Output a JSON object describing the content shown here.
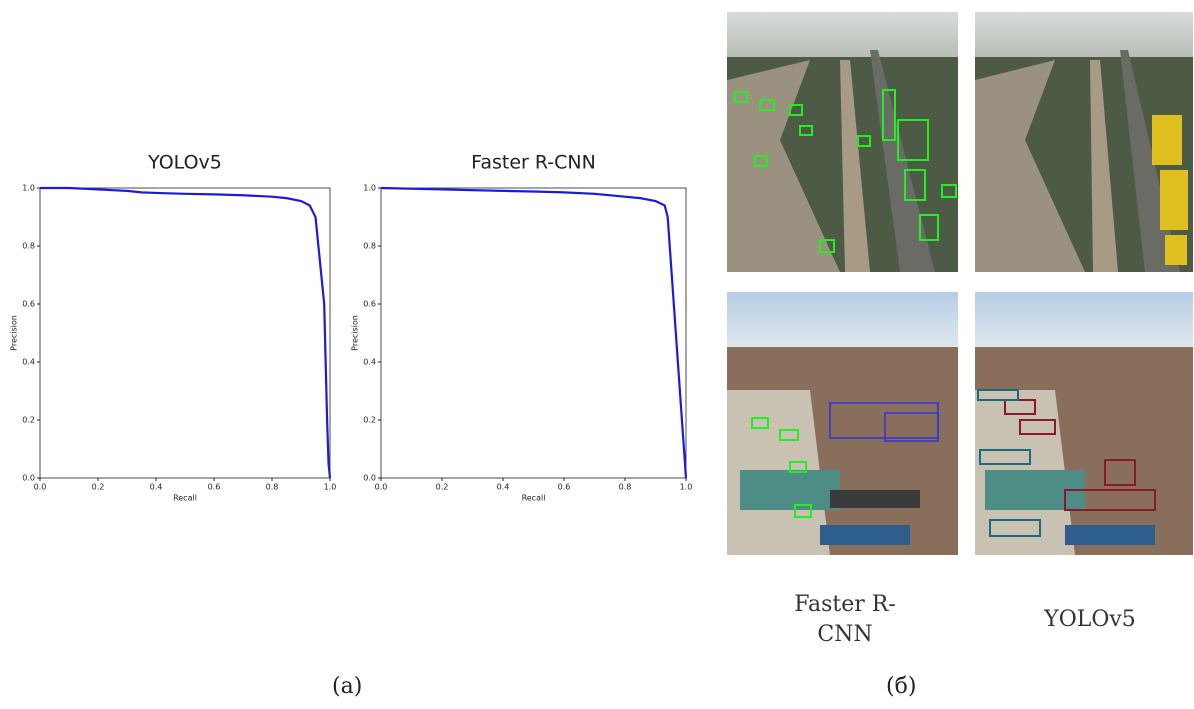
{
  "chart_data": [
    {
      "type": "line",
      "title": "YOLOv5",
      "xlabel": "Recall",
      "ylabel": "Precision",
      "x": [
        0,
        0.1,
        0.2,
        0.3,
        0.35,
        0.4,
        0.5,
        0.6,
        0.7,
        0.8,
        0.85,
        0.9,
        0.93,
        0.95,
        0.96,
        0.97,
        0.975,
        0.98,
        0.985,
        0.99,
        0.995,
        1.0
      ],
      "series": [
        {
          "name": "YOLOv5",
          "color": "#1a1ae0",
          "values": [
            1,
            1,
            0.995,
            0.99,
            0.985,
            0.983,
            0.98,
            0.978,
            0.975,
            0.97,
            0.965,
            0.955,
            0.94,
            0.9,
            0.8,
            0.7,
            0.65,
            0.6,
            0.4,
            0.2,
            0.05,
            0
          ]
        }
      ],
      "xlim": [
        0,
        1
      ],
      "ylim": [
        0,
        1
      ],
      "xticks": [
        {
          "value": 0,
          "label": "0.0"
        },
        0.2,
        0.4,
        0.6,
        0.8,
        {
          "value": 1,
          "label": "1.0"
        }
      ],
      "yticks": [
        {
          "value": 0,
          "label": "0.0"
        },
        0.2,
        0.4,
        0.6,
        0.8,
        {
          "value": 1,
          "label": "1.0"
        }
      ]
    },
    {
      "type": "line",
      "title": "Faster R-CNN",
      "xlabel": "Recall",
      "ylabel": "Precision",
      "x": [
        0,
        0.2,
        0.4,
        0.5,
        0.6,
        0.7,
        0.8,
        0.85,
        0.9,
        0.93,
        0.94,
        0.96,
        0.98,
        1.0
      ],
      "series": [
        {
          "name": "Faster R-CNN",
          "color": "#1a1ae0",
          "values": [
            1,
            0.995,
            0.99,
            0.988,
            0.985,
            0.98,
            0.97,
            0.965,
            0.955,
            0.94,
            0.9,
            0.6,
            0.3,
            0
          ]
        }
      ],
      "xlim": [
        0,
        1
      ],
      "ylim": [
        0,
        1
      ],
      "xticks": [
        {
          "value": 0,
          "label": "0.0"
        },
        0.2,
        0.4,
        0.6,
        0.8,
        {
          "value": 1,
          "label": "1.0"
        }
      ],
      "yticks": [
        {
          "value": 0,
          "label": "0.0"
        },
        0.2,
        0.4,
        0.6,
        0.8,
        {
          "value": 1,
          "label": "1.0"
        }
      ]
    }
  ],
  "photos": {
    "labels": [
      "Faster R-CNN",
      "YOLOv5"
    ]
  },
  "captions": [
    "(a)",
    "(б)"
  ]
}
